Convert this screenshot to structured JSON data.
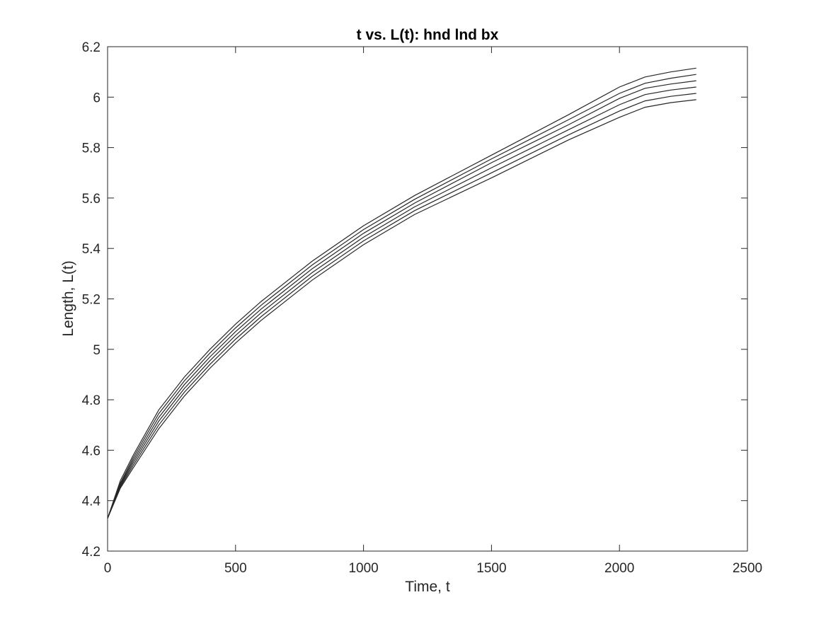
{
  "chart_data": {
    "type": "line",
    "title": "t vs. L(t): hnd lnd bx",
    "xlabel": "Time, t",
    "ylabel": "Length, L(t)",
    "xlim": [
      0,
      2500
    ],
    "ylim": [
      4.2,
      6.2
    ],
    "xticks": [
      0,
      500,
      1000,
      1500,
      2000,
      2500
    ],
    "yticks": [
      4.2,
      4.4,
      4.6,
      4.8,
      5,
      5.2,
      5.4,
      5.6,
      5.8,
      6,
      6.2
    ],
    "xtick_labels": [
      "0",
      "500",
      "1000",
      "1500",
      "2000",
      "2500"
    ],
    "ytick_labels": [
      "4.2",
      "4.4",
      "4.6",
      "4.8",
      "5",
      "5.2",
      "5.4",
      "5.6",
      "5.8",
      "6",
      "6.2"
    ],
    "grid": false,
    "box": true,
    "line_color": "#262626",
    "x": [
      0,
      50,
      100,
      200,
      300,
      400,
      500,
      600,
      800,
      1000,
      1200,
      1500,
      1800,
      2000,
      2100,
      2200,
      2300
    ],
    "series": [
      {
        "values": [
          4.33,
          4.48,
          4.58,
          4.76,
          4.89,
          5.0,
          5.1,
          5.19,
          5.35,
          5.49,
          5.61,
          5.77,
          5.93,
          6.04,
          6.08,
          6.1,
          6.115
        ]
      },
      {
        "values": [
          4.33,
          4.47,
          4.57,
          4.745,
          4.875,
          4.985,
          5.085,
          5.175,
          5.335,
          5.475,
          5.595,
          5.755,
          5.91,
          6.015,
          6.055,
          6.075,
          6.09
        ]
      },
      {
        "values": [
          4.33,
          4.465,
          4.56,
          4.73,
          4.86,
          4.97,
          5.07,
          5.16,
          5.32,
          5.46,
          5.58,
          5.74,
          5.89,
          5.995,
          6.035,
          6.052,
          6.065
        ]
      },
      {
        "values": [
          4.33,
          4.46,
          4.55,
          4.715,
          4.845,
          4.955,
          5.055,
          5.145,
          5.305,
          5.445,
          5.565,
          5.72,
          5.87,
          5.97,
          6.01,
          6.028,
          6.04
        ]
      },
      {
        "values": [
          4.33,
          4.455,
          4.54,
          4.7,
          4.83,
          4.94,
          5.04,
          5.13,
          5.29,
          5.43,
          5.55,
          5.7,
          5.85,
          5.945,
          5.985,
          6.003,
          6.015
        ]
      },
      {
        "values": [
          4.33,
          4.45,
          4.53,
          4.685,
          4.815,
          4.925,
          5.025,
          5.115,
          5.275,
          5.415,
          5.535,
          5.68,
          5.83,
          5.92,
          5.96,
          5.978,
          5.99
        ]
      }
    ]
  }
}
